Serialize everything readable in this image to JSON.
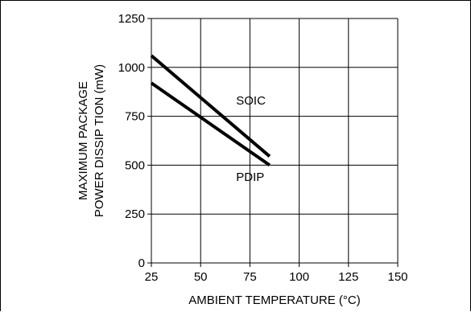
{
  "chart_data": {
    "type": "line",
    "xlabel": "AMBIENT TEMPERATURE (°C)",
    "ylabel_lines": [
      "MAXIMUM PACKAGE",
      "POWER DISSIP  TION (mW)"
    ],
    "xlim": [
      25,
      150
    ],
    "ylim": [
      0,
      1250
    ],
    "x_ticks": [
      "25",
      "50",
      "75",
      "100",
      "125",
      "150"
    ],
    "y_ticks": [
      "0",
      "250",
      "500",
      "750",
      "1000",
      "1250"
    ],
    "grid": true,
    "series": [
      {
        "name": "SOIC",
        "x": [
          25,
          85
        ],
        "y": [
          1060,
          545
        ]
      },
      {
        "name": "PDIP",
        "x": [
          25,
          85
        ],
        "y": [
          920,
          500
        ]
      }
    ]
  }
}
